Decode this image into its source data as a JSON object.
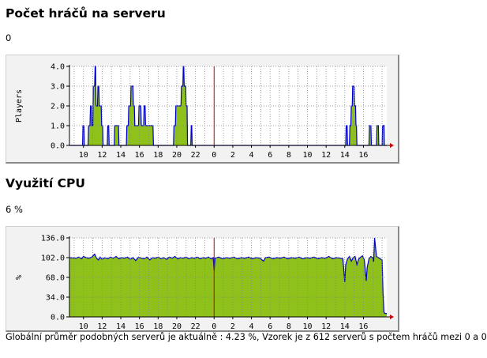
{
  "players": {
    "title": "Počet hráčů na serveru",
    "value": "0",
    "ylabel": "Players"
  },
  "cpu": {
    "title": "Využití CPU",
    "value": "6 %",
    "ylabel": "%"
  },
  "footer": "Globální průměr podobných serverů je aktuálně : 4.23 %, Vzorek je z 612 serverů s počtem hráčů mezi 0 a 0",
  "colors": {
    "fill": "#8ec21a",
    "line": "#0000cc",
    "now_marker": "#cc0000",
    "plot_bg": "#ffffff",
    "panel_bg": "#f2f2f2",
    "grid": "#888888"
  },
  "chart_data": [
    {
      "type": "area",
      "title": "Počet hráčů na serveru",
      "ylabel": "Players",
      "ylim": [
        0,
        4
      ],
      "yticks": [
        "0.0",
        "1.0",
        "2.0",
        "3.0",
        "4.0"
      ],
      "xticks": [
        "10",
        "12",
        "14",
        "16",
        "18",
        "20",
        "22",
        "0",
        "2",
        "4",
        "6",
        "8",
        "10",
        "12",
        "14",
        "16"
      ],
      "x_start_hour": 8.5,
      "x_end_hour": 42.5,
      "now_hour": 24,
      "grid": true,
      "points": [
        [
          8.5,
          0
        ],
        [
          9.9,
          0
        ],
        [
          9.95,
          1
        ],
        [
          10.05,
          1
        ],
        [
          10.1,
          0
        ],
        [
          10.5,
          0
        ],
        [
          10.55,
          1
        ],
        [
          10.7,
          1
        ],
        [
          10.75,
          2
        ],
        [
          10.85,
          2
        ],
        [
          10.9,
          1
        ],
        [
          11,
          1
        ],
        [
          11.05,
          3
        ],
        [
          11.2,
          3
        ],
        [
          11.25,
          4
        ],
        [
          11.3,
          4
        ],
        [
          11.35,
          2
        ],
        [
          11.5,
          2
        ],
        [
          11.55,
          3
        ],
        [
          11.65,
          3
        ],
        [
          11.7,
          2
        ],
        [
          11.9,
          2
        ],
        [
          11.95,
          1
        ],
        [
          12.05,
          1
        ],
        [
          12.1,
          0
        ],
        [
          12.55,
          0
        ],
        [
          12.6,
          1
        ],
        [
          12.7,
          1
        ],
        [
          12.75,
          0
        ],
        [
          13.3,
          0
        ],
        [
          13.35,
          1
        ],
        [
          13.75,
          1
        ],
        [
          13.8,
          0
        ],
        [
          14.6,
          0
        ],
        [
          14.65,
          1
        ],
        [
          14.8,
          1
        ],
        [
          14.85,
          2
        ],
        [
          15.05,
          2
        ],
        [
          15.1,
          3
        ],
        [
          15.3,
          3
        ],
        [
          15.35,
          2
        ],
        [
          15.45,
          2
        ],
        [
          15.5,
          1
        ],
        [
          15.9,
          1
        ],
        [
          15.95,
          2
        ],
        [
          16.15,
          2
        ],
        [
          16.2,
          1
        ],
        [
          16.45,
          1
        ],
        [
          16.5,
          2
        ],
        [
          16.6,
          2
        ],
        [
          16.65,
          1
        ],
        [
          17.45,
          1
        ],
        [
          17.5,
          0
        ],
        [
          19.65,
          0
        ],
        [
          19.7,
          1
        ],
        [
          19.85,
          1
        ],
        [
          19.9,
          2
        ],
        [
          20.45,
          2
        ],
        [
          20.5,
          3
        ],
        [
          20.65,
          3
        ],
        [
          20.7,
          4
        ],
        [
          20.75,
          4
        ],
        [
          20.8,
          3
        ],
        [
          20.95,
          3
        ],
        [
          21,
          2
        ],
        [
          21.1,
          2
        ],
        [
          21.15,
          0
        ],
        [
          21.5,
          0
        ],
        [
          21.55,
          1
        ],
        [
          21.6,
          1
        ],
        [
          21.65,
          0
        ],
        [
          38.1,
          0
        ],
        [
          38.15,
          1
        ],
        [
          38.25,
          1
        ],
        [
          38.3,
          0
        ],
        [
          38.5,
          0
        ],
        [
          38.55,
          1
        ],
        [
          38.65,
          1
        ],
        [
          38.7,
          2
        ],
        [
          38.8,
          2
        ],
        [
          38.85,
          3
        ],
        [
          39,
          3
        ],
        [
          39.05,
          2
        ],
        [
          39.15,
          2
        ],
        [
          39.2,
          1
        ],
        [
          39.25,
          1
        ],
        [
          39.3,
          0
        ],
        [
          40.6,
          0
        ],
        [
          40.65,
          1
        ],
        [
          40.8,
          1
        ],
        [
          40.85,
          0
        ],
        [
          41.4,
          0
        ],
        [
          41.45,
          1
        ],
        [
          41.6,
          1
        ],
        [
          41.65,
          0
        ],
        [
          42.0,
          0
        ],
        [
          42.05,
          1
        ],
        [
          42.2,
          1
        ],
        [
          42.25,
          0
        ],
        [
          42.5,
          0
        ]
      ]
    },
    {
      "type": "area",
      "title": "Využití CPU",
      "ylabel": "%",
      "ylim": [
        0,
        136
      ],
      "yticks": [
        "0.0",
        "34.0",
        "68.0",
        "102.0",
        "136.0"
      ],
      "xticks": [
        "10",
        "12",
        "14",
        "16",
        "18",
        "20",
        "22",
        "0",
        "2",
        "4",
        "6",
        "8",
        "10",
        "12",
        "14",
        "16"
      ],
      "x_start_hour": 8.5,
      "x_end_hour": 42.5,
      "now_hour": 24,
      "grid": true,
      "points": [
        [
          8.5,
          102
        ],
        [
          9.2,
          101
        ],
        [
          9.5,
          103
        ],
        [
          9.8,
          100
        ],
        [
          10.0,
          104
        ],
        [
          10.3,
          102
        ],
        [
          10.6,
          101
        ],
        [
          10.9,
          103
        ],
        [
          11.2,
          108
        ],
        [
          11.4,
          101
        ],
        [
          11.6,
          98
        ],
        [
          11.8,
          103
        ],
        [
          12.0,
          99
        ],
        [
          12.3,
          102
        ],
        [
          12.6,
          100
        ],
        [
          12.9,
          103
        ],
        [
          13.2,
          101
        ],
        [
          13.5,
          104
        ],
        [
          13.8,
          100
        ],
        [
          14.1,
          102
        ],
        [
          14.4,
          101
        ],
        [
          14.7,
          103
        ],
        [
          15.0,
          99
        ],
        [
          15.3,
          102
        ],
        [
          15.6,
          97
        ],
        [
          15.9,
          103
        ],
        [
          16.2,
          101
        ],
        [
          16.5,
          100
        ],
        [
          16.8,
          103
        ],
        [
          17.1,
          98
        ],
        [
          17.4,
          102
        ],
        [
          17.7,
          101
        ],
        [
          18.0,
          103
        ],
        [
          18.3,
          100
        ],
        [
          18.6,
          102
        ],
        [
          18.9,
          99
        ],
        [
          19.2,
          103
        ],
        [
          19.5,
          101
        ],
        [
          19.8,
          104
        ],
        [
          20.1,
          100
        ],
        [
          20.4,
          102
        ],
        [
          20.7,
          101
        ],
        [
          21.0,
          103
        ],
        [
          21.3,
          100
        ],
        [
          21.6,
          102
        ],
        [
          21.9,
          101
        ],
        [
          22.2,
          103
        ],
        [
          22.5,
          100
        ],
        [
          22.8,
          102
        ],
        [
          23.1,
          101
        ],
        [
          23.4,
          103
        ],
        [
          23.7,
          100
        ],
        [
          23.9,
          102
        ],
        [
          24.0,
          80
        ],
        [
          24.1,
          101
        ],
        [
          24.5,
          103
        ],
        [
          24.9,
          100
        ],
        [
          25.3,
          102
        ],
        [
          25.7,
          101
        ],
        [
          26.1,
          103
        ],
        [
          26.5,
          100
        ],
        [
          26.9,
          102
        ],
        [
          27.3,
          101
        ],
        [
          27.7,
          103
        ],
        [
          28.1,
          100
        ],
        [
          28.5,
          102
        ],
        [
          28.9,
          101
        ],
        [
          29.3,
          96
        ],
        [
          29.5,
          102
        ],
        [
          29.9,
          103
        ],
        [
          30.3,
          100
        ],
        [
          30.7,
          102
        ],
        [
          31.1,
          101
        ],
        [
          31.5,
          103
        ],
        [
          31.9,
          100
        ],
        [
          32.3,
          102
        ],
        [
          32.7,
          101
        ],
        [
          33.1,
          103
        ],
        [
          33.5,
          100
        ],
        [
          33.9,
          102
        ],
        [
          34.3,
          101
        ],
        [
          34.7,
          103
        ],
        [
          35.1,
          100
        ],
        [
          35.5,
          102
        ],
        [
          35.9,
          101
        ],
        [
          36.3,
          104
        ],
        [
          36.7,
          100
        ],
        [
          37.1,
          102
        ],
        [
          37.5,
          101
        ],
        [
          37.8,
          100
        ],
        [
          37.9,
          80
        ],
        [
          38.0,
          60
        ],
        [
          38.1,
          90
        ],
        [
          38.3,
          100
        ],
        [
          38.5,
          104
        ],
        [
          38.7,
          96
        ],
        [
          38.9,
          102
        ],
        [
          39.1,
          104
        ],
        [
          39.3,
          90
        ],
        [
          39.5,
          100
        ],
        [
          39.7,
          103
        ],
        [
          39.9,
          105
        ],
        [
          40.1,
          98
        ],
        [
          40.3,
          62
        ],
        [
          40.4,
          85
        ],
        [
          40.6,
          100
        ],
        [
          40.8,
          104
        ],
        [
          41.0,
          102
        ],
        [
          41.1,
          95
        ],
        [
          41.2,
          136
        ],
        [
          41.3,
          120
        ],
        [
          41.4,
          104
        ],
        [
          41.6,
          102
        ],
        [
          41.8,
          100
        ],
        [
          42.0,
          98
        ],
        [
          42.1,
          40
        ],
        [
          42.2,
          8
        ],
        [
          42.3,
          6
        ],
        [
          42.5,
          6
        ]
      ]
    }
  ]
}
